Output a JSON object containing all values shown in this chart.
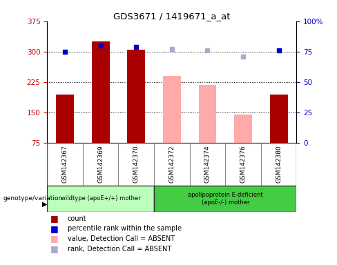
{
  "title": "GDS3671 / 1419671_a_at",
  "samples": [
    "GSM142367",
    "GSM142369",
    "GSM142370",
    "GSM142372",
    "GSM142374",
    "GSM142376",
    "GSM142380"
  ],
  "groups": [
    "wildtype",
    "wildtype",
    "wildtype",
    "apoE",
    "apoE",
    "apoE",
    "apoE"
  ],
  "count_values": [
    195,
    325,
    305,
    null,
    null,
    null,
    195
  ],
  "count_absent_values": [
    null,
    null,
    null,
    240,
    218,
    145,
    null
  ],
  "rank_values": [
    75,
    80,
    79,
    null,
    null,
    null,
    76
  ],
  "rank_absent_values": [
    null,
    null,
    null,
    77,
    76,
    71,
    null
  ],
  "ylim_left": [
    75,
    375
  ],
  "ylim_right": [
    0,
    100
  ],
  "yticks_left": [
    75,
    150,
    225,
    300,
    375
  ],
  "yticks_right": [
    0,
    25,
    50,
    75,
    100
  ],
  "bar_color_present": "#aa0000",
  "bar_color_absent": "#ffaaaa",
  "dot_color_present": "#0000cc",
  "dot_color_absent": "#aaaacc",
  "bg_plot": "#ffffff",
  "bg_xtick": "#cccccc",
  "group1_label": "wildtype (apoE+/+) mother",
  "group2_label": "apolipoprotein E-deficient\n(apoE-/-) mother",
  "group1_color": "#bbffbb",
  "group2_color": "#44cc44",
  "legend_count": "count",
  "legend_rank": "percentile rank within the sample",
  "legend_absent_val": "value, Detection Call = ABSENT",
  "legend_absent_rank": "rank, Detection Call = ABSENT",
  "left_label_color": "#cc0000",
  "right_label_color": "#0000cc"
}
